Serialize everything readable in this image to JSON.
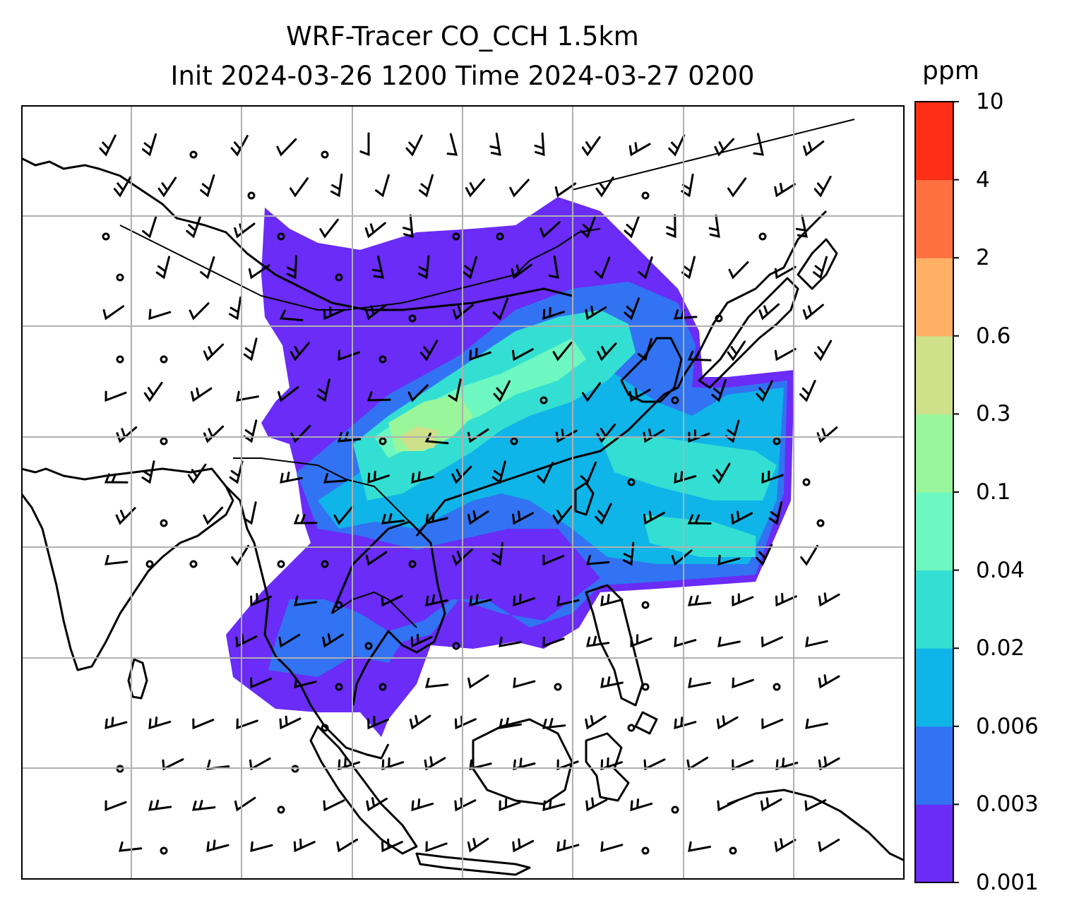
{
  "title": {
    "line1": "WRF-Tracer CO_CCH 1.5km",
    "line2": "Init 2024-03-26 1200 Time 2024-03-27 0200"
  },
  "colorbar": {
    "unit": "ppm",
    "levels": [
      "0.001",
      "0.003",
      "0.006",
      "0.02",
      "0.04",
      "0.1",
      "0.3",
      "0.6",
      "2",
      "4",
      "10"
    ],
    "colors": [
      "#6a2cf6",
      "#3173f2",
      "#0fb4e8",
      "#33dfd2",
      "#6cf8c0",
      "#99f69b",
      "#cfe08a",
      "#feb064",
      "#fe7040",
      "#fd2e16"
    ]
  },
  "map": {
    "field": "CO_CCH tracer concentration",
    "overlays": [
      "coastlines",
      "country-borders",
      "wind-barbs",
      "lat-lon-grid"
    ],
    "grid": true
  },
  "chart_data": {
    "type": "heatmap",
    "title": "WRF-Tracer CO_CCH 1.5km",
    "subtitle": "Init 2024-03-26 1200 Time 2024-03-27 0200",
    "colorbar_label": "ppm",
    "color_levels": [
      0.001,
      0.003,
      0.006,
      0.02,
      0.04,
      0.1,
      0.3,
      0.6,
      2,
      4,
      10
    ],
    "grid": true
  }
}
